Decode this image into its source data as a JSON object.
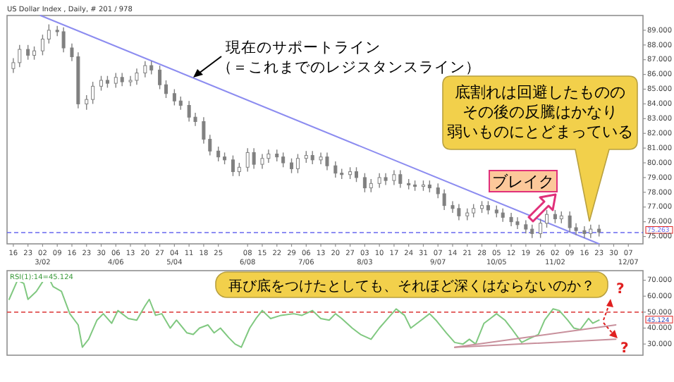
{
  "chart_data": [
    {
      "type": "candlestick",
      "title": "US Dollar Index , Daily, # 201 / 978",
      "color": "#808080",
      "x": [
        "--02-16",
        "--02-19",
        "--02-23",
        "--02-26",
        "--03-02",
        "--03-05",
        "--03-09",
        "--03-12",
        "--03-16",
        "--03-19",
        "--03-23",
        "--03-26",
        "--03-30",
        "--04-02",
        "--04-06",
        "--04-09",
        "--04-13",
        "--04-16",
        "--04-20",
        "--04-23",
        "--04-27",
        "--04-30",
        "--05-04",
        "--05-07",
        "--05-11",
        "--05-14",
        "--05-18",
        "--05-21",
        "--05-25",
        "--05-28",
        "--06-01",
        "--06-04",
        "--06-08",
        "--06-11",
        "--06-15",
        "--06-18",
        "--06-22",
        "--06-25",
        "--06-29",
        "--07-02",
        "--07-06",
        "--07-09",
        "--07-13",
        "--07-16",
        "--07-20",
        "--07-23",
        "--07-27",
        "--07-30",
        "--08-03",
        "--08-06",
        "--08-10",
        "--08-13",
        "--08-17",
        "--08-20",
        "--08-24",
        "--08-27",
        "--08-31",
        "--09-03",
        "--09-07",
        "--09-10",
        "--09-14",
        "--09-17",
        "--09-21",
        "--09-24",
        "--09-28",
        "--10-01",
        "--10-05",
        "--10-08",
        "--10-12",
        "--10-15",
        "--10-19",
        "--10-22",
        "--10-26",
        "--10-29",
        "--11-02",
        "--11-05",
        "--11-09",
        "--11-12",
        "--11-16",
        "--11-19",
        "--11-23"
      ],
      "ohlc": [
        [
          86.4,
          87.1,
          86.1,
          86.8
        ],
        [
          86.8,
          88.0,
          86.5,
          87.7
        ],
        [
          87.7,
          88.0,
          87.0,
          87.3
        ],
        [
          87.3,
          87.9,
          87.0,
          87.6
        ],
        [
          87.6,
          88.7,
          87.3,
          88.4
        ],
        [
          88.4,
          89.4,
          88.1,
          89.0
        ],
        [
          89.0,
          89.3,
          88.6,
          88.9
        ],
        [
          88.9,
          89.2,
          87.5,
          87.8
        ],
        [
          87.8,
          88.1,
          86.9,
          87.2
        ],
        [
          87.2,
          87.5,
          83.7,
          84.0
        ],
        [
          84.0,
          84.6,
          83.6,
          84.3
        ],
        [
          84.3,
          85.5,
          84.0,
          85.2
        ],
        [
          85.2,
          85.9,
          84.9,
          85.6
        ],
        [
          85.6,
          85.9,
          85.1,
          85.4
        ],
        [
          85.4,
          86.1,
          85.1,
          85.8
        ],
        [
          85.8,
          86.1,
          85.2,
          85.5
        ],
        [
          85.5,
          85.9,
          85.2,
          85.6
        ],
        [
          85.6,
          86.4,
          85.3,
          86.1
        ],
        [
          86.1,
          86.9,
          85.8,
          86.6
        ],
        [
          86.6,
          86.9,
          86.0,
          86.3
        ],
        [
          86.3,
          86.6,
          85.0,
          85.3
        ],
        [
          85.3,
          85.6,
          84.4,
          84.7
        ],
        [
          84.7,
          85.0,
          83.9,
          84.2
        ],
        [
          84.2,
          84.5,
          83.6,
          83.9
        ],
        [
          83.9,
          84.2,
          82.8,
          83.1
        ],
        [
          83.1,
          83.4,
          82.5,
          82.8
        ],
        [
          82.8,
          83.1,
          81.3,
          81.6
        ],
        [
          81.6,
          81.9,
          80.5,
          80.8
        ],
        [
          80.8,
          81.1,
          80.1,
          80.4
        ],
        [
          80.4,
          80.7,
          79.9,
          80.2
        ],
        [
          80.2,
          80.5,
          79.1,
          79.4
        ],
        [
          79.4,
          80.0,
          79.1,
          79.7
        ],
        [
          79.7,
          81.0,
          79.4,
          80.7
        ],
        [
          80.7,
          81.0,
          79.6,
          79.9
        ],
        [
          79.9,
          80.6,
          79.6,
          80.3
        ],
        [
          80.3,
          80.9,
          80.0,
          80.6
        ],
        [
          80.6,
          80.9,
          80.1,
          80.4
        ],
        [
          80.4,
          80.7,
          79.7,
          80.0
        ],
        [
          80.0,
          80.3,
          79.3,
          79.6
        ],
        [
          79.6,
          80.6,
          79.3,
          80.3
        ],
        [
          80.3,
          80.8,
          80.0,
          80.5
        ],
        [
          80.5,
          80.8,
          79.9,
          80.2
        ],
        [
          80.2,
          80.7,
          79.9,
          80.4
        ],
        [
          80.4,
          80.7,
          79.5,
          79.8
        ],
        [
          79.8,
          80.1,
          79.0,
          79.3
        ],
        [
          79.3,
          79.6,
          78.9,
          79.2
        ],
        [
          79.2,
          79.7,
          78.9,
          79.4
        ],
        [
          79.4,
          79.7,
          78.7,
          79.0
        ],
        [
          79.0,
          79.3,
          78.0,
          78.3
        ],
        [
          78.3,
          78.9,
          78.0,
          78.6
        ],
        [
          78.6,
          79.3,
          78.3,
          79.0
        ],
        [
          79.0,
          79.3,
          78.5,
          78.8
        ],
        [
          78.8,
          79.5,
          78.5,
          79.2
        ],
        [
          79.2,
          79.5,
          78.3,
          78.6
        ],
        [
          78.6,
          78.9,
          78.2,
          78.5
        ],
        [
          78.5,
          78.8,
          78.1,
          78.4
        ],
        [
          78.4,
          78.8,
          78.1,
          78.5
        ],
        [
          78.5,
          78.8,
          78.0,
          78.3
        ],
        [
          78.3,
          78.6,
          77.6,
          77.9
        ],
        [
          77.9,
          78.2,
          76.8,
          77.1
        ],
        [
          77.1,
          77.4,
          76.6,
          76.9
        ],
        [
          76.9,
          77.2,
          76.1,
          76.4
        ],
        [
          76.4,
          76.9,
          76.1,
          76.6
        ],
        [
          76.6,
          77.2,
          76.3,
          76.9
        ],
        [
          76.9,
          77.4,
          76.6,
          77.1
        ],
        [
          77.1,
          77.4,
          76.5,
          76.8
        ],
        [
          76.8,
          77.1,
          76.3,
          76.6
        ],
        [
          76.6,
          76.9,
          76.0,
          76.3
        ],
        [
          76.3,
          76.6,
          75.7,
          76.0
        ],
        [
          76.0,
          76.3,
          75.5,
          75.8
        ],
        [
          75.8,
          76.1,
          75.2,
          75.5
        ],
        [
          75.5,
          75.8,
          74.9,
          75.2
        ],
        [
          75.2,
          76.2,
          74.9,
          75.9
        ],
        [
          75.9,
          76.8,
          75.6,
          76.5
        ],
        [
          76.5,
          76.8,
          75.9,
          76.2
        ],
        [
          76.2,
          76.7,
          75.9,
          76.4
        ],
        [
          76.4,
          76.7,
          75.3,
          75.6
        ],
        [
          75.6,
          75.9,
          75.1,
          75.4
        ],
        [
          75.4,
          75.7,
          74.9,
          75.2
        ],
        [
          75.2,
          75.8,
          74.9,
          75.5
        ],
        [
          75.5,
          75.8,
          75.0,
          75.3
        ]
      ],
      "series": [
        {
          "type": "line",
          "color": "#8c8cf0",
          "x": [
            "--03-01",
            "--11-23"
          ],
          "values": [
            90.0,
            74.5
          ]
        }
      ],
      "xlim": [
        "--02-13",
        "--12-14"
      ],
      "ylim": [
        74.5,
        90
      ],
      "xticks": [
        {
          "value": "--02-16",
          "label": "16"
        },
        {
          "value": "--02-23",
          "label": "23"
        },
        {
          "value": "--03-02",
          "label": "02\n3/02"
        },
        {
          "value": "--03-09",
          "label": "09"
        },
        {
          "value": "--03-16",
          "label": "16"
        },
        {
          "value": "--03-23",
          "label": "23"
        },
        {
          "value": "--03-30",
          "label": "30"
        },
        {
          "value": "--04-06",
          "label": "06\n4/06"
        },
        {
          "value": "--04-13",
          "label": "13"
        },
        {
          "value": "--04-20",
          "label": "20"
        },
        {
          "value": "--04-27",
          "label": "27"
        },
        {
          "value": "--05-04",
          "label": "04\n5/04"
        },
        {
          "value": "--05-11",
          "label": "11"
        },
        {
          "value": "--05-18",
          "label": "18"
        },
        {
          "value": "--05-25",
          "label": "25"
        },
        {
          "value": "--06-08",
          "label": "08\n6/08"
        },
        {
          "value": "--06-15",
          "label": "15"
        },
        {
          "value": "--06-22",
          "label": "22"
        },
        {
          "value": "--06-29",
          "label": "29"
        },
        {
          "value": "--07-06",
          "label": "06\n7/06"
        },
        {
          "value": "--07-13",
          "label": "13"
        },
        {
          "value": "--07-20",
          "label": "20"
        },
        {
          "value": "--07-27",
          "label": "27"
        },
        {
          "value": "--08-03",
          "label": "03\n8/03"
        },
        {
          "value": "--08-10",
          "label": "10"
        },
        {
          "value": "--08-17",
          "label": "17"
        },
        {
          "value": "--08-24",
          "label": "24"
        },
        {
          "value": "--08-31",
          "label": "31"
        },
        {
          "value": "--09-07",
          "label": "07\n9/07"
        },
        {
          "value": "--09-14",
          "label": "14"
        },
        {
          "value": "--09-21",
          "label": "21"
        },
        {
          "value": "--09-28",
          "label": "28"
        },
        {
          "value": "--10-05",
          "label": "05\n10/05"
        },
        {
          "value": "--10-12",
          "label": "12"
        },
        {
          "value": "--10-19",
          "label": "19"
        },
        {
          "value": "--10-26",
          "label": "26"
        },
        {
          "value": "--11-02",
          "label": "02\n11/02"
        },
        {
          "value": "--11-09",
          "label": "09"
        },
        {
          "value": "--11-16",
          "label": "16"
        },
        {
          "value": "--11-23",
          "label": "23"
        },
        {
          "value": "--11-30",
          "label": "30"
        },
        {
          "value": "--12-07",
          "label": "07\n12/07"
        }
      ],
      "yticks": [
        {
          "value": 89,
          "label": "89.000"
        },
        {
          "value": 88,
          "label": "88.000"
        },
        {
          "value": 87,
          "label": "87.000"
        },
        {
          "value": 86,
          "label": "86.000"
        },
        {
          "value": 85,
          "label": "85.000"
        },
        {
          "value": 84,
          "label": "84.000"
        },
        {
          "value": 83,
          "label": "83.000"
        },
        {
          "value": 82,
          "label": "82.000"
        },
        {
          "value": 81,
          "label": "81.000"
        },
        {
          "value": 80,
          "label": "80.000"
        },
        {
          "value": 79,
          "label": "79.000"
        },
        {
          "value": 78,
          "label": "78.000"
        },
        {
          "value": 77,
          "label": "77.000"
        },
        {
          "value": 76,
          "label": "76.000"
        },
        {
          "value": 75,
          "label": "75.000"
        }
      ],
      "ref_lines": [
        {
          "axis": "y",
          "value": 75.263,
          "label": "75.263",
          "color": "#6a6af0",
          "line_style": "dashed"
        }
      ],
      "annotations": [
        "現在のサポートライン",
        "（＝これまでのレジスタンスライン）",
        "底割れは回避したものの",
        "その後の反騰はかなり",
        "弱いものにとどまっている",
        "ブレイク"
      ]
    },
    {
      "type": "line",
      "title": "RSI(1):14=45.124",
      "tick_labels": "y",
      "series": [
        {
          "color": "#80c880",
          "x": [
            "--02-14",
            "--02-18",
            "--02-21",
            "--02-23",
            "--02-27",
            "--03-02",
            "--03-04",
            "--03-07",
            "--03-11",
            "--03-15",
            "--03-19",
            "--03-21",
            "--03-24",
            "--03-28",
            "--03-31",
            "--04-04",
            "--04-07",
            "--04-12",
            "--04-16",
            "--04-20",
            "--04-22",
            "--04-25",
            "--04-28",
            "--05-02",
            "--05-05",
            "--05-10",
            "--05-13",
            "--05-16",
            "--05-20",
            "--05-23",
            "--05-26",
            "--05-30",
            "--06-02",
            "--06-05",
            "--06-09",
            "--06-12",
            "--06-15",
            "--06-19",
            "--06-24",
            "--06-30",
            "--07-04",
            "--07-09",
            "--07-13",
            "--07-17",
            "--07-20",
            "--07-23",
            "--07-28",
            "--08-01",
            "--08-06",
            "--08-10",
            "--08-14",
            "--08-18",
            "--08-22",
            "--08-25",
            "--08-30",
            "--09-03",
            "--09-06",
            "--09-11",
            "--09-15",
            "--09-19",
            "--09-22",
            "--09-25",
            "--09-29",
            "--10-02",
            "--10-05",
            "--10-09",
            "--10-12",
            "--10-17",
            "--10-20",
            "--10-25",
            "--10-28",
            "--11-01",
            "--11-04",
            "--11-08",
            "--11-11",
            "--11-14",
            "--11-18",
            "--11-20",
            "--11-23"
          ],
          "values": [
            58,
            70,
            68,
            58,
            63,
            69,
            74,
            66,
            63,
            49,
            42,
            28,
            33,
            45,
            49,
            43,
            51,
            46,
            45,
            54,
            58,
            48,
            49,
            40,
            45,
            37,
            36,
            40,
            42,
            37,
            40,
            34,
            30,
            28,
            40,
            46,
            51,
            46,
            48,
            49,
            48,
            51,
            46,
            45,
            49,
            46,
            40,
            36,
            33,
            40,
            46,
            52,
            48,
            40,
            45,
            49,
            45,
            37,
            31,
            30,
            33,
            30,
            43,
            46,
            49,
            45,
            40,
            31,
            33,
            36,
            45,
            52,
            51,
            45,
            40,
            39,
            46,
            43,
            45
          ]
        },
        {
          "color": "#c8909c",
          "x": [
            "--09-15",
            "--12-01"
          ],
          "values": [
            28,
            42
          ]
        },
        {
          "color": "#c8909c",
          "x": [
            "--09-15",
            "--12-01"
          ],
          "values": [
            28,
            33
          ]
        }
      ],
      "xlim": [
        "--02-13",
        "--12-14"
      ],
      "ylim": [
        23,
        76
      ],
      "yticks": [
        {
          "value": 70,
          "label": "70.000"
        },
        {
          "value": 60,
          "label": "60.000"
        },
        {
          "value": 50,
          "label": "50.000"
        },
        {
          "value": 40,
          "label": "40.000"
        },
        {
          "value": 30,
          "label": "30.000"
        }
      ],
      "ref_lines": [
        {
          "axis": "y",
          "value": 50,
          "color": "#e05050",
          "line_style": "dashed"
        }
      ],
      "annotations": [
        "再び底をつけたとしても、それほど深くはならないのか？",
        "?",
        "?",
        "45.124"
      ]
    }
  ]
}
